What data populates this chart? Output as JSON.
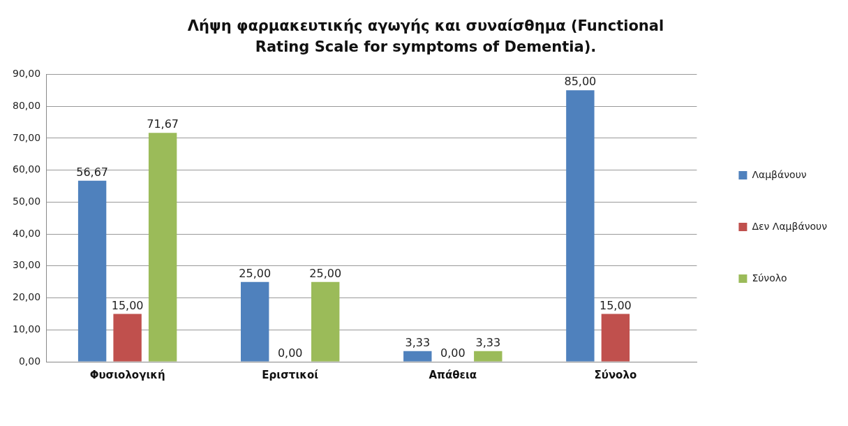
{
  "chart_data": {
    "type": "bar",
    "title": "Λήψη φαρμακευτικής αγωγής και συναίσθημα (Functional Rating Scale for symptoms of Dementia).",
    "categories": [
      "Φυσιολογική",
      "Εριστικοί",
      "Απάθεια",
      "Σύνολο"
    ],
    "series": [
      {
        "name": "Λαμβάνουν",
        "color": "#4f81bd",
        "values": [
          56.67,
          25,
          3.33,
          85
        ],
        "value_labels": [
          "56,67",
          "25,00",
          "3,33",
          "85,00"
        ]
      },
      {
        "name": "Δεν Λαμβάνουν",
        "color": "#c0504d",
        "values": [
          15,
          0,
          0,
          15
        ],
        "value_labels": [
          "15,00",
          "0,00",
          "0,00",
          "15,00"
        ]
      },
      {
        "name": "Σύνολο",
        "color": "#9bbb59",
        "values": [
          71.67,
          25,
          3.33,
          null
        ],
        "value_labels": [
          "71,67",
          "25,00",
          "3,33",
          null
        ]
      }
    ],
    "ylim": [
      0,
      90
    ],
    "yticks": [
      {
        "value": 0,
        "label": "0,00"
      },
      {
        "value": 10,
        "label": "10,00"
      },
      {
        "value": 20,
        "label": "20,00"
      },
      {
        "value": 30,
        "label": "30,00"
      },
      {
        "value": 40,
        "label": "40,00"
      },
      {
        "value": 50,
        "label": "50,00"
      },
      {
        "value": 60,
        "label": "60,00"
      },
      {
        "value": 70,
        "label": "70,00"
      },
      {
        "value": 80,
        "label": "80,00"
      },
      {
        "value": 90,
        "label": "90,00"
      }
    ],
    "grid": "y",
    "legend": "right"
  }
}
